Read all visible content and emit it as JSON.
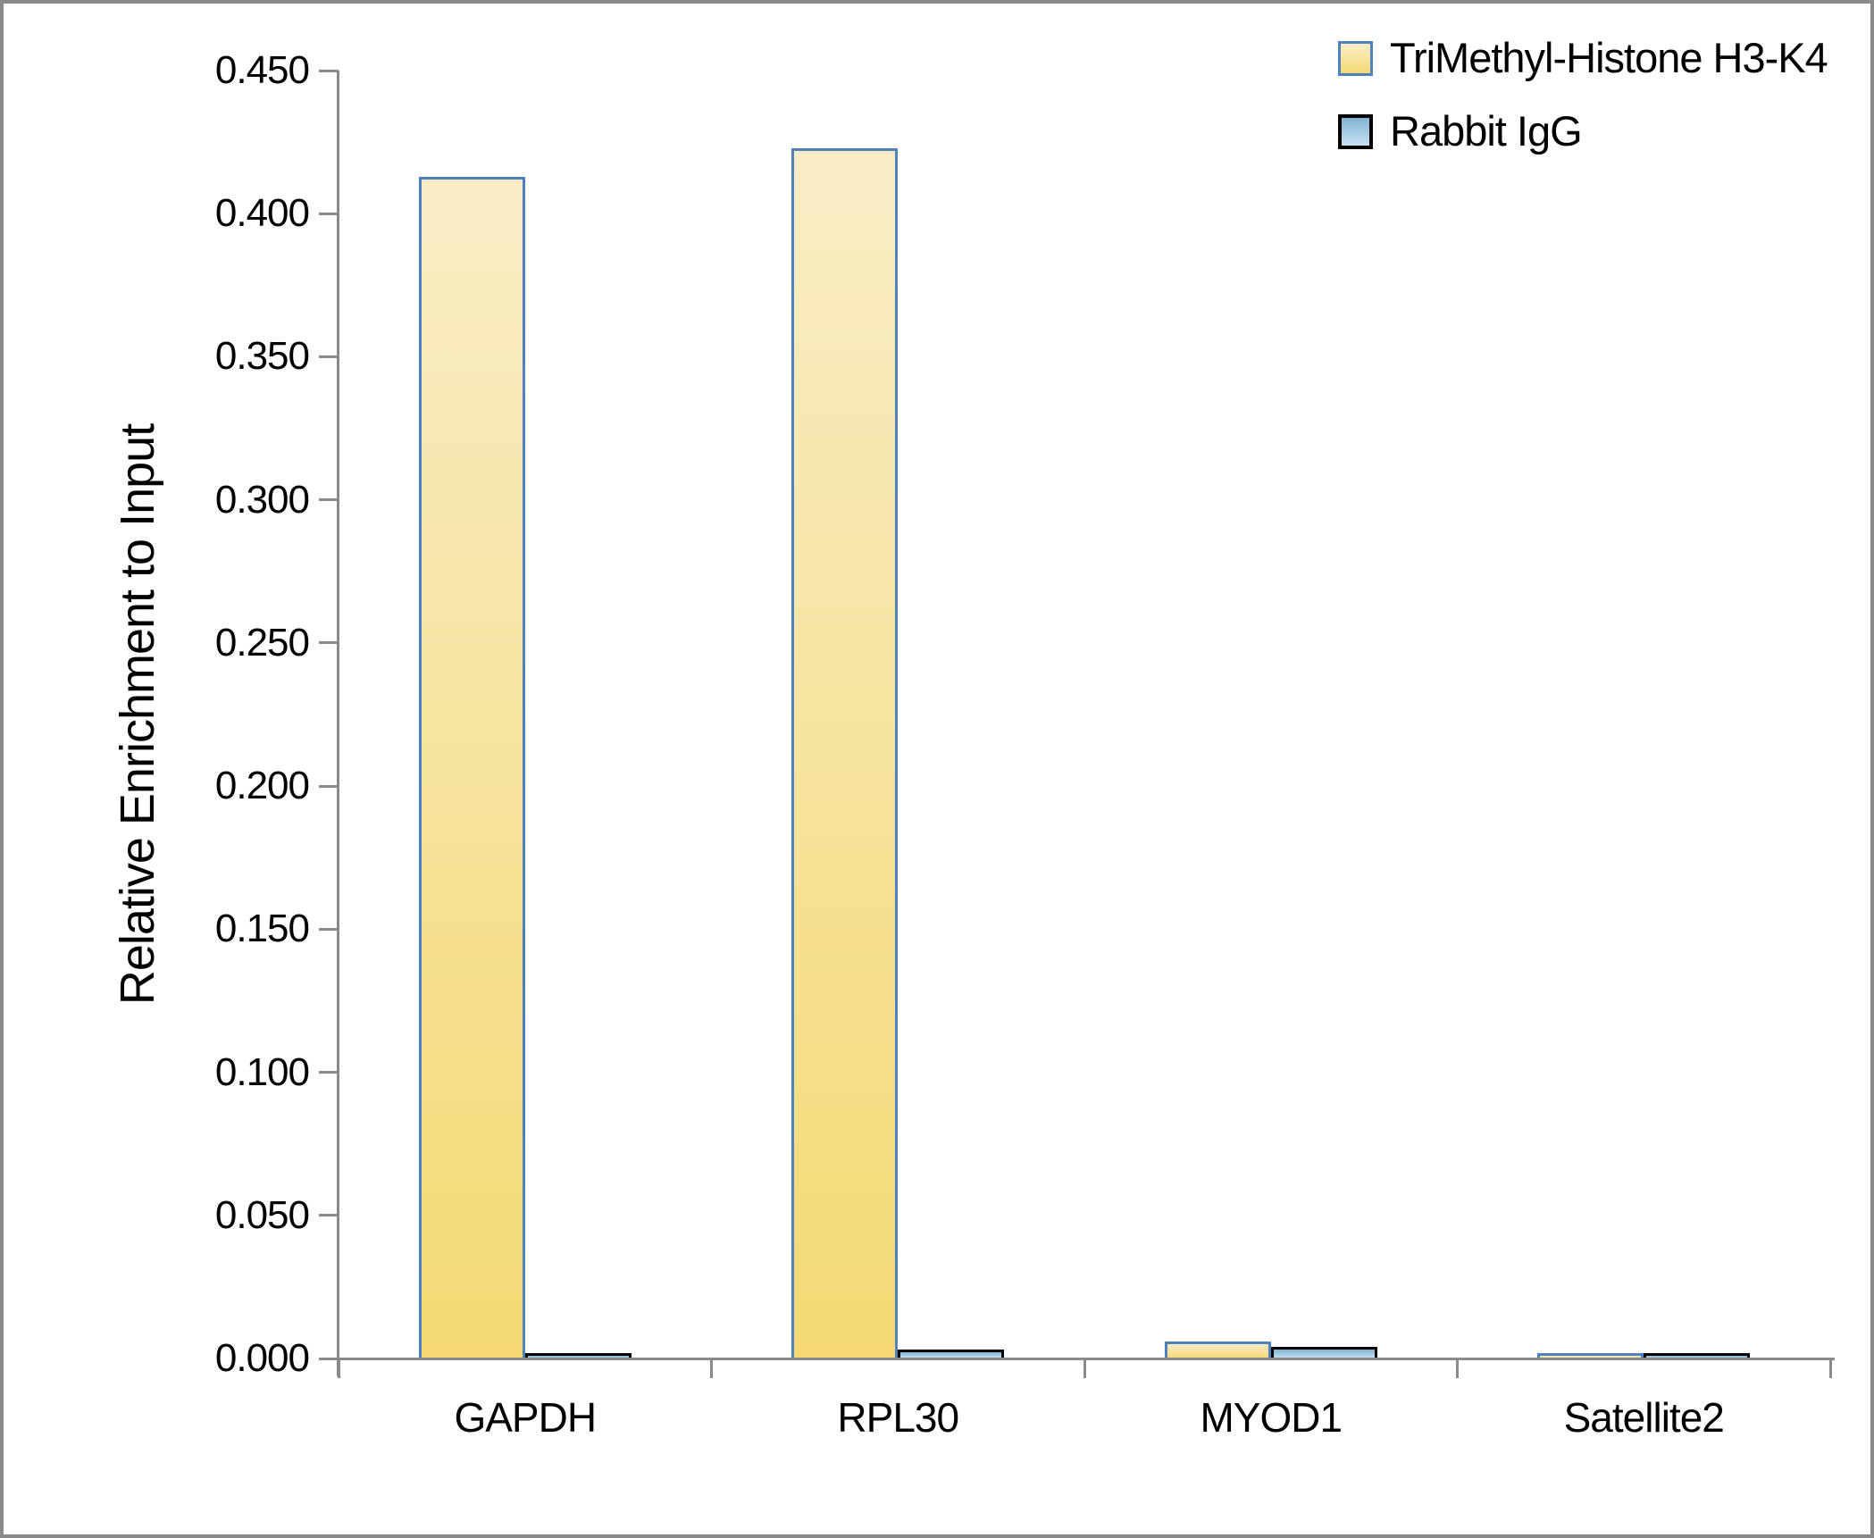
{
  "figure": {
    "background": "#FFFFFF",
    "frame_color": "#8A8A8A"
  },
  "chart_data": {
    "type": "bar",
    "title": "",
    "xlabel": "",
    "ylabel": "Relative Enrichment to Input",
    "categories": [
      "GAPDH",
      "RPL30",
      "MYOD1",
      "Satellite2"
    ],
    "series": [
      {
        "name": "TriMethyl-Histone H3-K4",
        "values": [
          0.413,
          0.423,
          0.006,
          0.002
        ],
        "fill_top": "#F8EDC6",
        "fill_bottom": "#F4D973",
        "border": "#4E81BD"
      },
      {
        "name": "Rabbit IgG",
        "values": [
          0.002,
          0.003,
          0.004,
          0.002
        ],
        "fill_top": "#7FB2D4",
        "fill_bottom": "#C9E2F2",
        "border": "#000000"
      }
    ],
    "ylim": [
      0,
      0.45
    ],
    "ytick_labels": [
      "0.000",
      "0.050",
      "0.100",
      "0.150",
      "0.200",
      "0.250",
      "0.300",
      "0.350",
      "0.400",
      "0.450"
    ],
    "grid": false,
    "legend_position": "top-right",
    "axis_color": "#8A8A8A",
    "text_color": "#000000"
  }
}
